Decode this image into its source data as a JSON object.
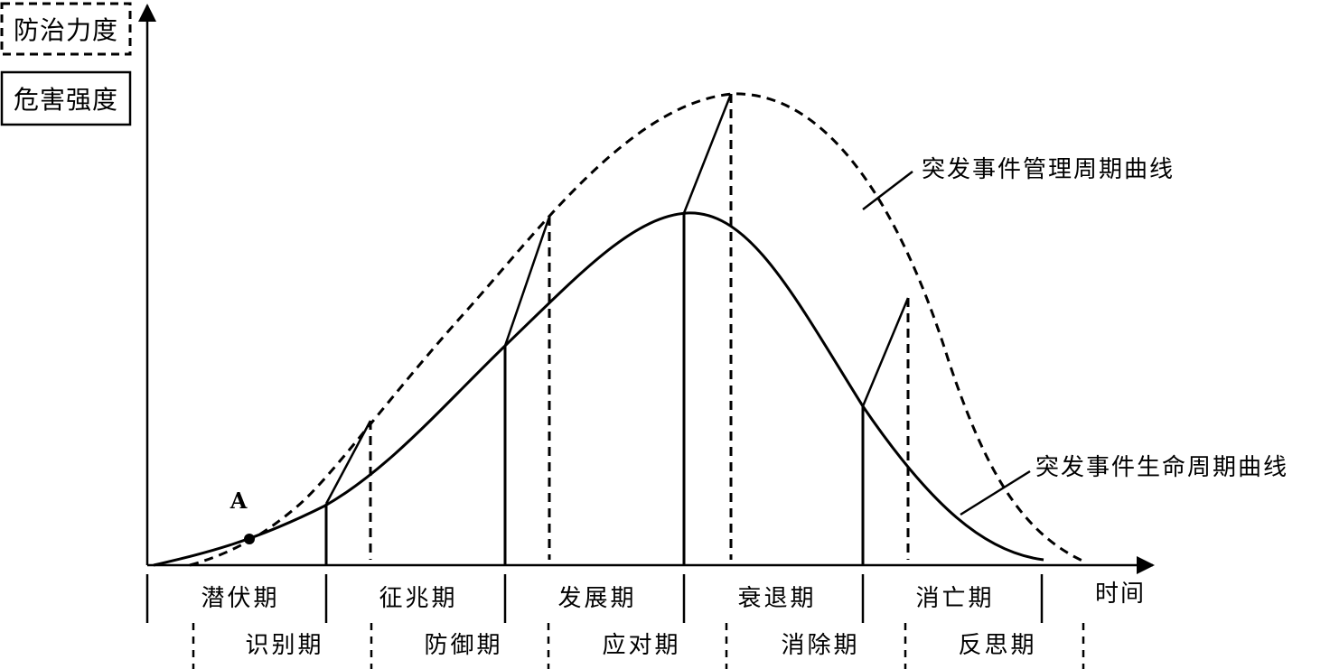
{
  "legend": {
    "dashed_label": "防治力度",
    "solid_label": "危害强度"
  },
  "point_label": "A",
  "x_axis_label": "时间",
  "callouts": {
    "management_curve": "突发事件管理周期曲线",
    "lifecycle_curve": "突发事件生命周期曲线"
  },
  "upper_phases": [
    "潜伏期",
    "征兆期",
    "发展期",
    "衰退期",
    "消亡期"
  ],
  "lower_phases": [
    "识别期",
    "防御期",
    "应对期",
    "消除期",
    "反思期"
  ],
  "styles": {
    "line_color": "#000000",
    "background": "#ffffff"
  }
}
